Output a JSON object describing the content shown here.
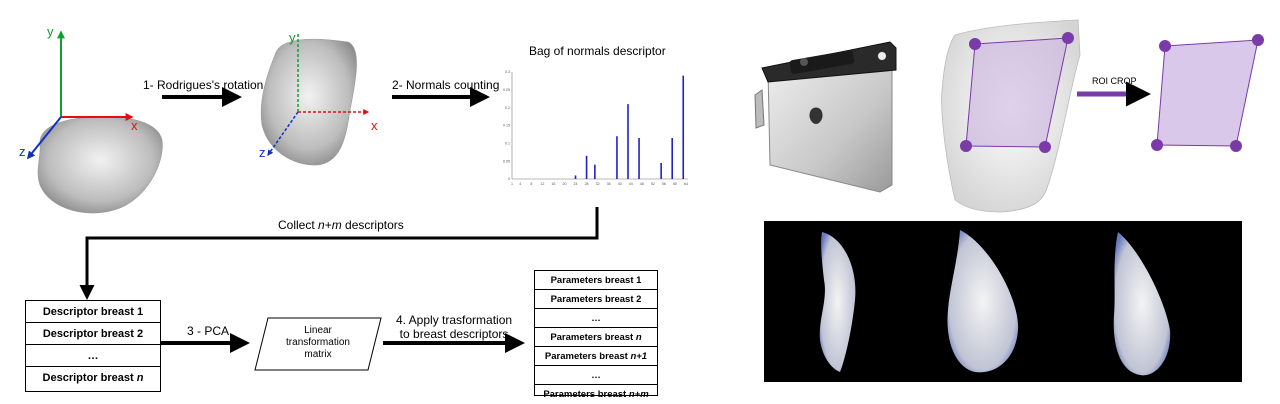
{
  "steps": {
    "rotation": "1- Rodrigues's rotation",
    "normals_counting": "2- Normals counting",
    "collect_prefix": "Collect ",
    "collect_n": "n",
    "collect_plus": "+",
    "collect_m": "m",
    "collect_suffix": " descriptors",
    "pca": "3 - PCA",
    "apply_line1": "4. Apply trasformation",
    "apply_line2": "to breast descriptors",
    "roi_crop": "ROI CROP"
  },
  "axes": {
    "x": "x",
    "y": "y",
    "z": "z"
  },
  "descriptor_table": {
    "rows": [
      {
        "text": "Descriptor breast 1",
        "var": ""
      },
      {
        "text": "Descriptor breast 2",
        "var": ""
      },
      {
        "text": "…",
        "var": ""
      },
      {
        "text": "Descriptor breast ",
        "var": "n"
      }
    ]
  },
  "linear_transform": {
    "line1": "Linear",
    "line2": "transformation",
    "line3": "matrix"
  },
  "parameters_table": {
    "rows": [
      {
        "text": "Parameters breast 1",
        "var": ""
      },
      {
        "text": "Parameters breast 2",
        "var": ""
      },
      {
        "text": "…",
        "var": ""
      },
      {
        "text": "Parameters breast ",
        "var": "n"
      },
      {
        "text": "Parameters breast ",
        "var": "n+1"
      },
      {
        "text": "…",
        "var": ""
      },
      {
        "text": "Parameters breast ",
        "var": "n+m"
      }
    ]
  },
  "chart_data": {
    "type": "bar",
    "title": "Bag of normals descriptor",
    "x_ticks": [
      "1",
      "4",
      "8",
      "12",
      "16",
      "20",
      "24",
      "28",
      "32",
      "36",
      "40",
      "44",
      "48",
      "52",
      "56",
      "60",
      "64"
    ],
    "y_ticks": [
      "0",
      "0.05",
      "0.1",
      "0.15",
      "0.2",
      "0.25",
      "0.3"
    ],
    "ylim": [
      0,
      0.3
    ],
    "xlim": [
      1,
      64
    ],
    "bars": [
      {
        "x": 24,
        "y": 0.01
      },
      {
        "x": 28,
        "y": 0.065
      },
      {
        "x": 31,
        "y": 0.04
      },
      {
        "x": 39,
        "y": 0.12
      },
      {
        "x": 43,
        "y": 0.21
      },
      {
        "x": 47,
        "y": 0.115
      },
      {
        "x": 55,
        "y": 0.045
      },
      {
        "x": 59,
        "y": 0.115
      },
      {
        "x": 63,
        "y": 0.29
      }
    ],
    "bar_color": "#2020c8"
  },
  "colors": {
    "x_axis": "#e01010",
    "y_axis": "#10a030",
    "z_axis": "#1030c0",
    "roi": "#7a3aa8",
    "roi_fill": "#c9b0e0"
  }
}
